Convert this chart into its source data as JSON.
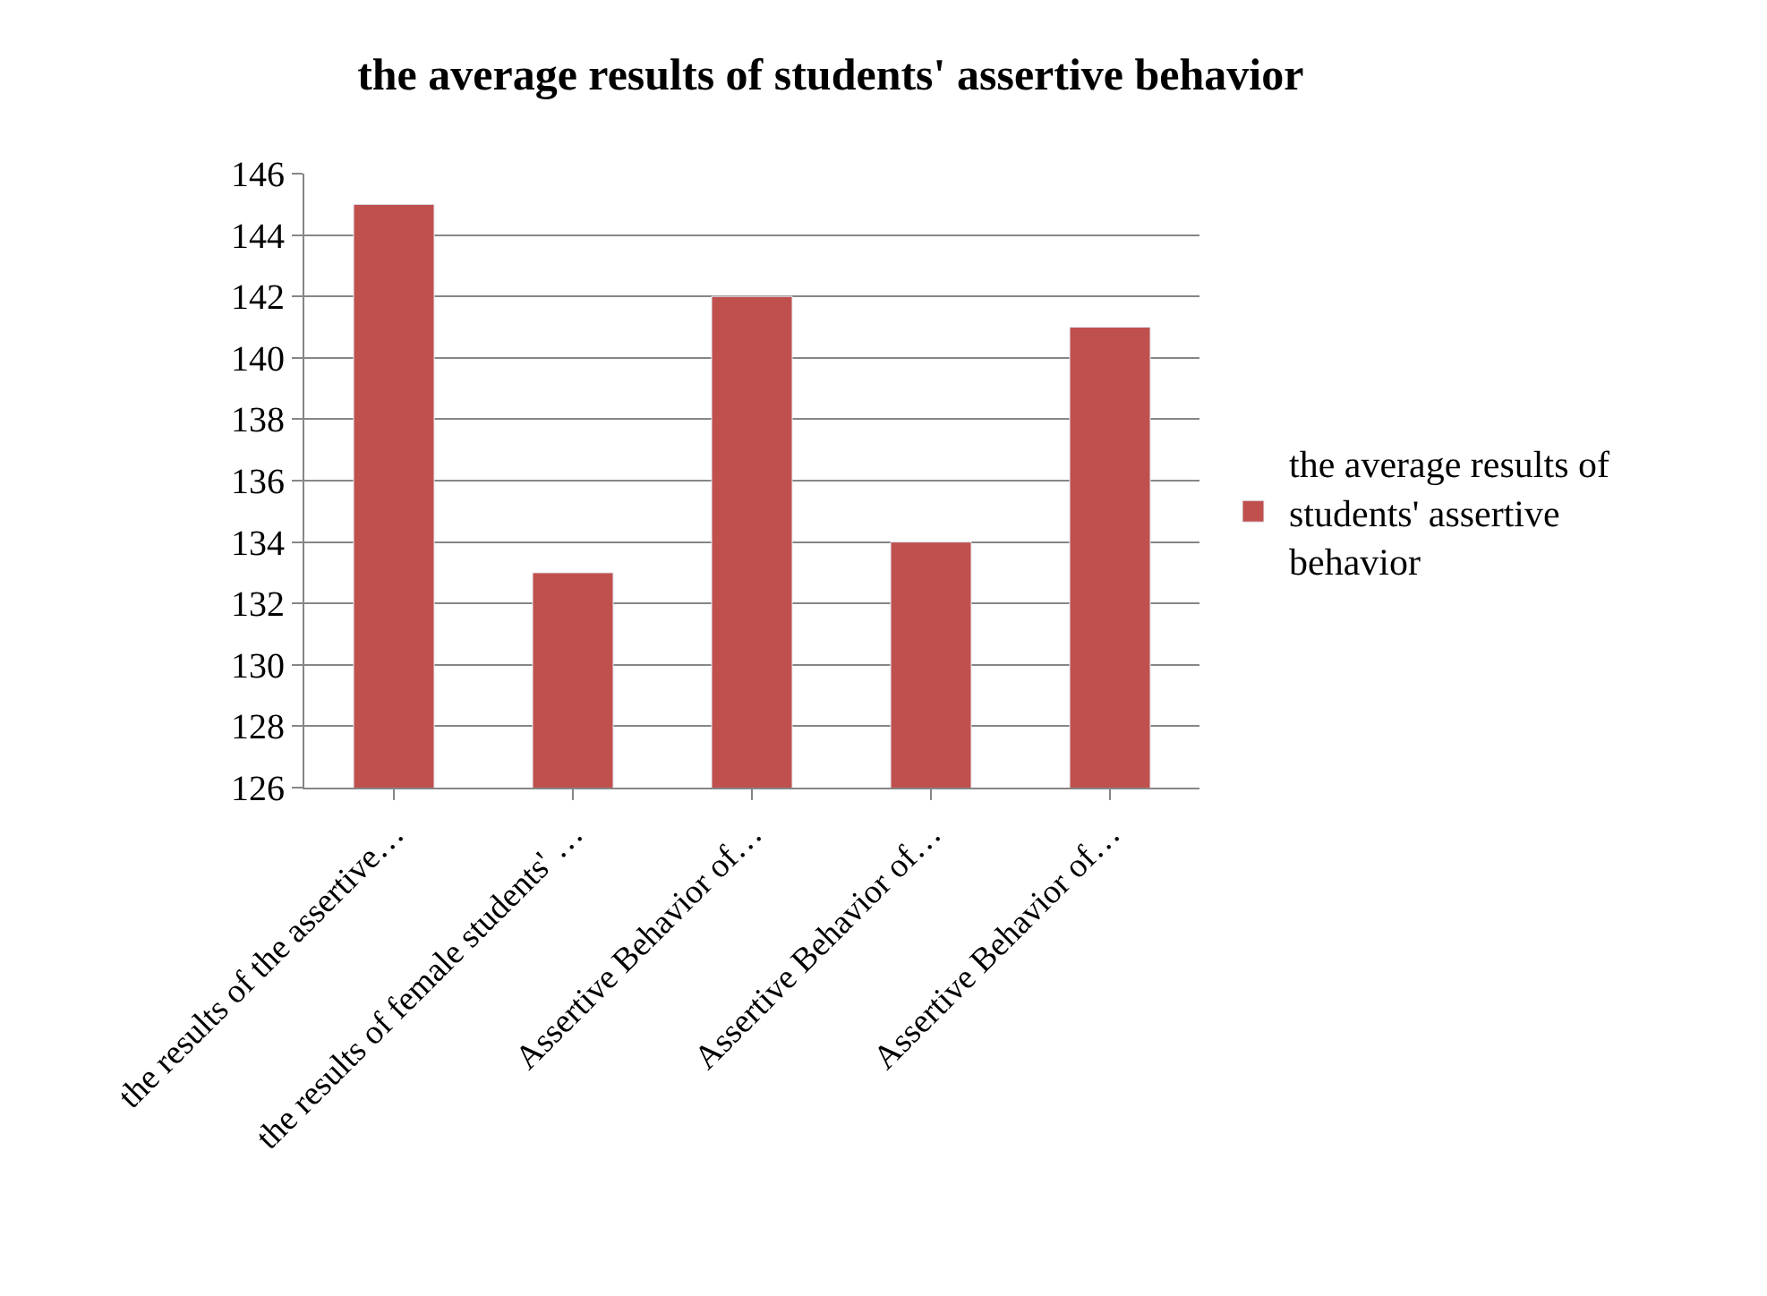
{
  "chart_data": {
    "type": "bar",
    "title": "the average results of students' assertive behavior",
    "categories": [
      "the results of the assertive…",
      "the results of female students' …",
      "Assertive Behavior of…",
      "Assertive Behavior of…",
      "Assertive Behavior of…"
    ],
    "series": [
      {
        "name": "the average results of students' assertive behavior",
        "color": "#c0504d",
        "values": [
          145,
          133,
          142,
          134,
          141
        ]
      }
    ],
    "ylim": [
      126,
      146
    ],
    "yticks": [
      126,
      128,
      130,
      132,
      134,
      136,
      138,
      140,
      142,
      144,
      146
    ],
    "grid": "y",
    "legend": "right"
  }
}
